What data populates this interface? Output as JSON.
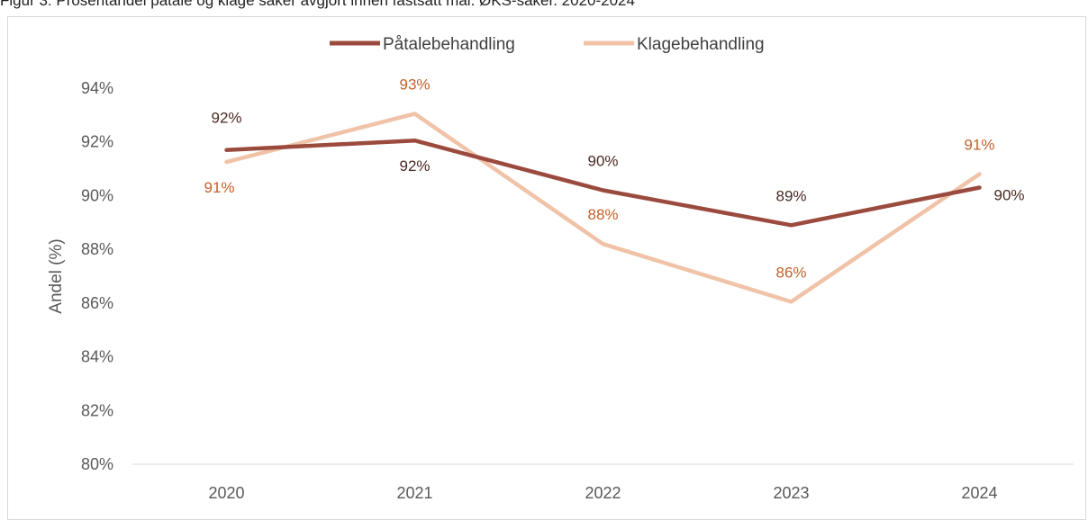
{
  "caption": "Figur 3: Prosentandel påtale og klage saker avgjort innen fastsatt mål. ØKS-saker. 2020-2024",
  "colors": {
    "s1": "#9b4a3e",
    "s2": "#f0c3a8",
    "label1": "#4a2a22",
    "label2": "#c0622c"
  },
  "chart_data": {
    "type": "line",
    "title": "",
    "xlabel": "",
    "ylabel": "Andel (%)",
    "categories": [
      "2020",
      "2021",
      "2022",
      "2023",
      "2024"
    ],
    "ylim": [
      80,
      94
    ],
    "yticks": [
      80,
      82,
      84,
      86,
      88,
      90,
      92,
      94
    ],
    "ytick_labels": [
      "80%",
      "82%",
      "84%",
      "86%",
      "88%",
      "90%",
      "92%",
      "94%"
    ],
    "grid": false,
    "legend": "top",
    "series": [
      {
        "name": "Påtalebehandling",
        "values": [
          91.7,
          92.05,
          90.2,
          88.9,
          90.3
        ],
        "labels": [
          "92%",
          "92%",
          "90%",
          "89%",
          "90%"
        ]
      },
      {
        "name": "Klagebehandling",
        "values": [
          91.25,
          93.05,
          88.2,
          86.05,
          90.8
        ],
        "labels": [
          "91%",
          "93%",
          "88%",
          "86%",
          "91%"
        ]
      }
    ]
  }
}
